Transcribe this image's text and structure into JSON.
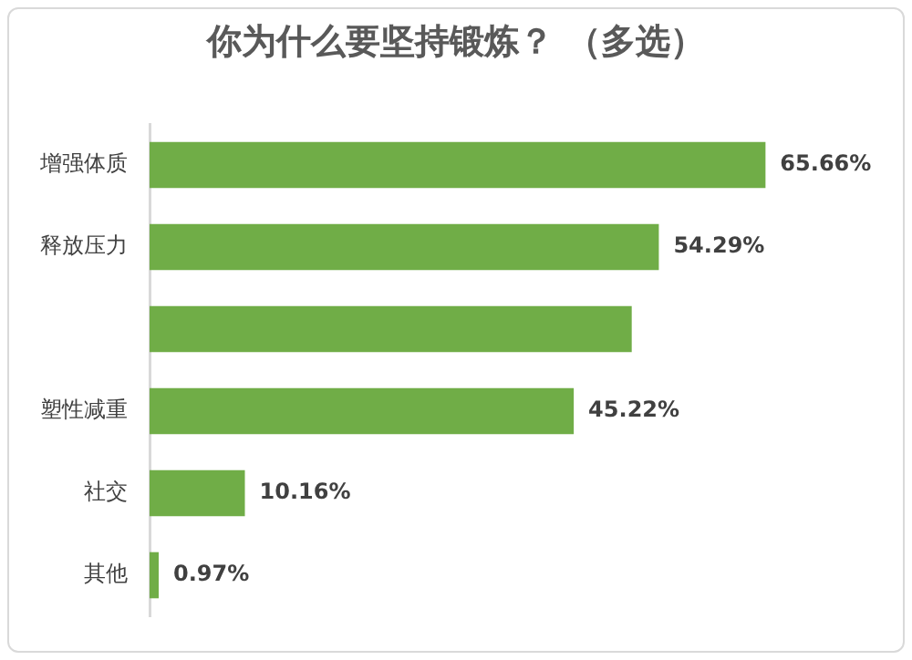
{
  "chart_data": {
    "type": "bar",
    "orientation": "horizontal",
    "title": "你为什么要坚持锻炼？ （多选）",
    "categories": [
      "增强体质",
      "释放压力",
      null,
      "塑性减重",
      "社交",
      "其他"
    ],
    "values": [
      65.66,
      54.29,
      51.4,
      45.22,
      10.16,
      0.97
    ],
    "value_labels": [
      "65.66%",
      "54.29%",
      null,
      "45.22%",
      "10.16%",
      "0.97%"
    ],
    "color": "#70ad47",
    "tick_labels": "y"
  }
}
